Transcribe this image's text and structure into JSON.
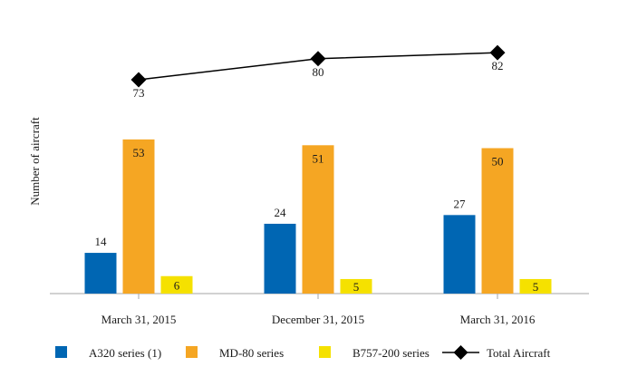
{
  "chart_data": {
    "type": "bar",
    "title": "",
    "xlabel": "",
    "ylabel": "Number of aircraft",
    "categories": [
      "March 31, 2015",
      "December 31, 2015",
      "March 31, 2016"
    ],
    "series": [
      {
        "name": "A320 series (1)",
        "type": "bar",
        "color": "#0066B3",
        "values": [
          14,
          24,
          27
        ]
      },
      {
        "name": "MD-80 series",
        "type": "bar",
        "color": "#F5A623",
        "values": [
          53,
          51,
          50
        ]
      },
      {
        "name": "B757-200 series",
        "type": "bar",
        "color": "#F5E100",
        "values": [
          6,
          5,
          5
        ]
      },
      {
        "name": "Total Aircraft",
        "type": "line",
        "color": "#000000",
        "marker": "diamond",
        "values": [
          73,
          80,
          82
        ]
      }
    ],
    "ylim": [
      0,
      55
    ],
    "grid": false,
    "legend": "bottom"
  }
}
